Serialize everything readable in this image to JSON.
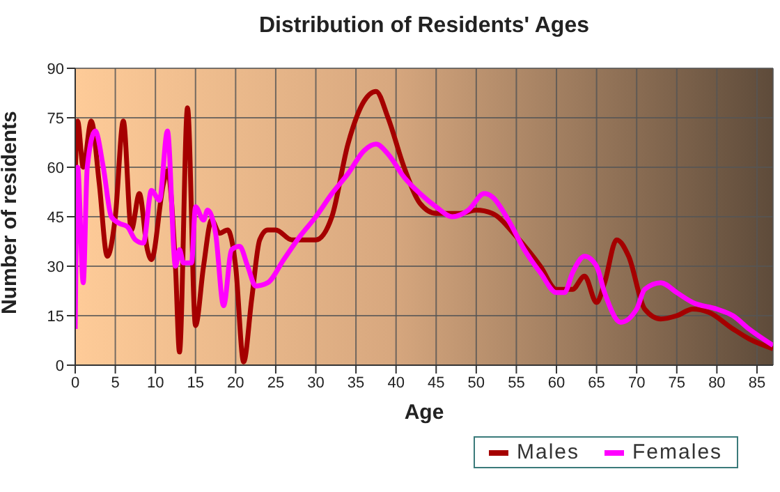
{
  "chart_data": {
    "type": "line",
    "title": "Distribution of Residents' Ages",
    "xlabel": "Age",
    "ylabel": "Number of residents",
    "xlim": [
      0,
      87
    ],
    "xticks": [
      0,
      5,
      10,
      15,
      20,
      25,
      30,
      35,
      40,
      45,
      50,
      55,
      60,
      65,
      70,
      75,
      80,
      85
    ],
    "ylim": [
      0,
      90
    ],
    "yticks": [
      0,
      15,
      30,
      45,
      60,
      75,
      90
    ],
    "grid": true,
    "legend": "bottom right",
    "series": [
      {
        "name": "Males",
        "color": "#a50000",
        "x": [
          0,
          0.3,
          1,
          2,
          3,
          4,
          5,
          6,
          7,
          8,
          9,
          9.5,
          11,
          11.5,
          12.5,
          13,
          14,
          15,
          16,
          17,
          18,
          19,
          20,
          21,
          22,
          23,
          24,
          25,
          27,
          30,
          32,
          34,
          36,
          37.5,
          39,
          41,
          43,
          45,
          48,
          50,
          52,
          55,
          58,
          60,
          62,
          63.5,
          65,
          66,
          67.5,
          69,
          71,
          73,
          75,
          77,
          79,
          82,
          84,
          87
        ],
        "values": [
          57,
          74,
          60,
          74,
          55,
          33,
          45,
          74,
          41,
          52,
          35,
          32,
          55,
          59,
          30,
          4,
          78,
          12,
          30,
          44,
          40,
          41,
          30,
          1,
          20,
          38,
          41,
          41,
          38,
          38,
          45,
          67,
          80,
          83,
          75,
          60,
          49,
          46,
          46,
          47,
          46,
          39,
          30,
          23,
          23,
          27,
          19,
          25,
          38,
          33,
          17,
          14,
          15,
          17,
          16,
          11,
          8,
          5
        ]
      },
      {
        "name": "Females",
        "color": "#ff00ff",
        "x": [
          0,
          0.3,
          1,
          1.5,
          2.5,
          3.5,
          4.5,
          5.5,
          6.5,
          7.5,
          8.5,
          9.5,
          10.5,
          11.5,
          12.5,
          13,
          13.5,
          14.5,
          15,
          16,
          16.5,
          17.5,
          18.5,
          19.5,
          20.5,
          21.5,
          22.5,
          24,
          26,
          28,
          30,
          32,
          34,
          36,
          37.5,
          39,
          41,
          43,
          45,
          47,
          49,
          51,
          52,
          54,
          56,
          58,
          60,
          61,
          62,
          63.5,
          65,
          66,
          68,
          70,
          71,
          73,
          75,
          77,
          80,
          82,
          84,
          87
        ],
        "values": [
          11,
          60,
          25,
          60,
          71,
          60,
          45,
          43,
          42,
          38,
          37,
          53,
          50,
          71,
          30,
          35,
          31,
          31,
          48,
          44,
          47,
          40,
          18,
          35,
          36,
          30,
          24,
          25,
          32,
          39,
          45,
          52,
          58,
          65,
          67,
          64,
          57,
          52,
          48,
          45,
          47,
          52,
          51,
          44,
          35,
          28,
          22,
          22,
          28,
          33,
          30,
          22,
          13,
          17,
          23,
          25,
          22,
          19,
          17,
          15,
          11,
          6
        ]
      }
    ]
  }
}
